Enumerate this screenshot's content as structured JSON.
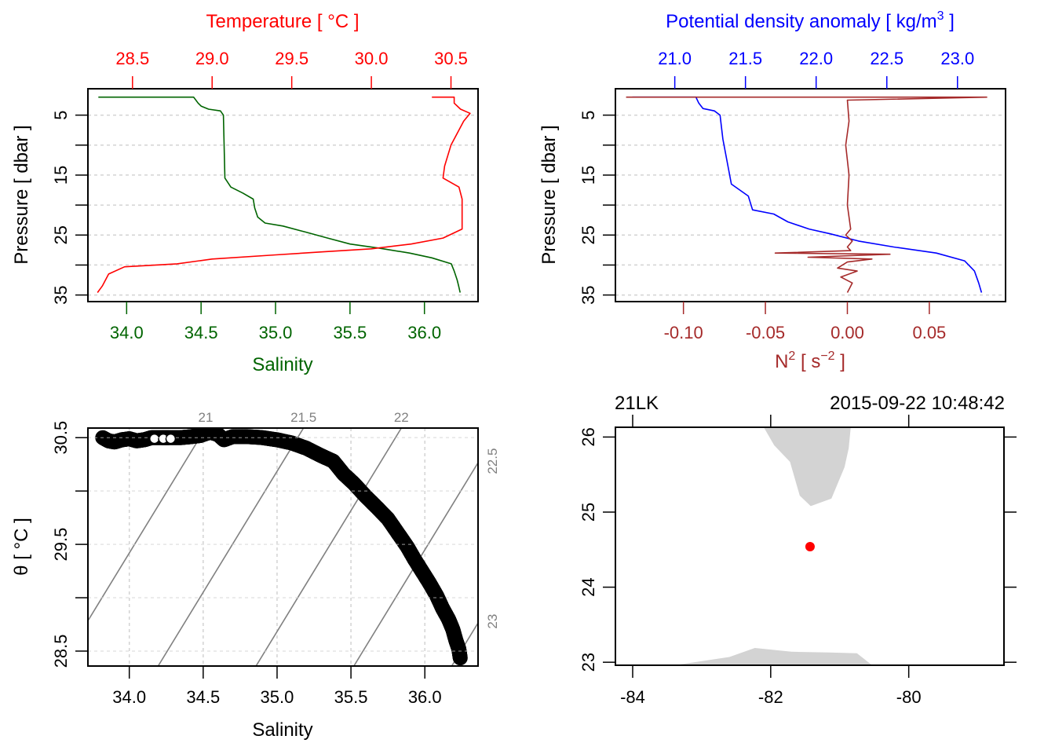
{
  "chart_data": [
    {
      "id": "profile_ts",
      "type": "line",
      "title": "",
      "top_axis": {
        "label": "Temperature [ °C ]",
        "color": "#ff0000",
        "ticks": [
          "28.5",
          "29.0",
          "29.5",
          "30.0",
          "30.5"
        ],
        "tick_values": [
          28.5,
          29.0,
          29.5,
          30.0,
          30.5
        ],
        "range": [
          28.22,
          30.67
        ]
      },
      "bottom_axis": {
        "label": "Salinity",
        "color": "#006400",
        "ticks": [
          "34.0",
          "34.5",
          "35.0",
          "35.5",
          "36.0"
        ],
        "tick_values": [
          34.0,
          34.5,
          35.0,
          35.5,
          36.0
        ],
        "range": [
          33.74,
          36.36
        ]
      },
      "left_axis": {
        "label": "Pressure [ dbar ]",
        "ticks": [
          "5",
          "15",
          "25",
          "35"
        ],
        "tick_values": [
          5,
          10,
          15,
          20,
          25,
          30,
          35
        ],
        "labeled_ticks": [
          5,
          15,
          25,
          35
        ],
        "range": [
          0.6,
          36.1
        ],
        "reversed": true
      },
      "grid": "horizontal-dashed",
      "series": [
        {
          "name": "Salinity",
          "color": "#006400",
          "axis": "bottom",
          "x": [
            33.81,
            34.45,
            34.48,
            34.5,
            34.55,
            34.63,
            34.65,
            34.66,
            34.7,
            34.78,
            34.85,
            34.86,
            34.88,
            34.93,
            35.05,
            35.2,
            35.35,
            35.5,
            35.7,
            35.9,
            36.05,
            36.18,
            36.2,
            36.22,
            36.23,
            36.24
          ],
          "y": [
            2.0,
            2.0,
            3.0,
            3.5,
            4.0,
            4.3,
            5.0,
            15.5,
            17.0,
            18.0,
            19.0,
            20.5,
            22.0,
            23.0,
            23.5,
            24.5,
            25.5,
            26.5,
            27.2,
            28.0,
            28.8,
            29.8,
            31.0,
            32.5,
            33.5,
            34.6
          ]
        },
        {
          "name": "Temperature",
          "color": "#ff0000",
          "axis": "top",
          "x": [
            30.38,
            30.52,
            30.52,
            30.56,
            30.62,
            30.58,
            30.5,
            30.46,
            30.45,
            30.55,
            30.57,
            30.57,
            30.45,
            30.25,
            30.0,
            29.7,
            29.4,
            29.0,
            28.78,
            28.45,
            28.35,
            28.31,
            28.28
          ],
          "y": [
            2.0,
            2.0,
            3.0,
            4.0,
            4.7,
            6.0,
            10.0,
            13.5,
            15.5,
            17.0,
            19.0,
            24.0,
            25.5,
            26.5,
            27.3,
            27.8,
            28.3,
            29.0,
            29.8,
            30.3,
            31.5,
            33.5,
            34.6
          ]
        }
      ]
    },
    {
      "id": "profile_density_n2",
      "type": "line",
      "top_axis": {
        "label": "Potential density anomaly [ kg/m",
        "label_sup": "3",
        "label_end": " ]",
        "color": "#0000ff",
        "ticks": [
          "21.0",
          "21.5",
          "22.0",
          "22.5",
          "23.0"
        ],
        "tick_values": [
          21.0,
          21.5,
          22.0,
          22.5,
          23.0
        ],
        "range": [
          20.58,
          23.34
        ]
      },
      "bottom_axis": {
        "label": "N",
        "label_sup": "2",
        "label_mid": " [ s",
        "label_sup2": "−2",
        "label_end": " ]",
        "color": "#a52a2a",
        "ticks": [
          "-0.10",
          "-0.05",
          "0.00",
          "0.05"
        ],
        "tick_values": [
          -0.1,
          -0.05,
          0.0,
          0.05
        ],
        "range": [
          -0.1415,
          0.0965
        ]
      },
      "left_axis": {
        "label": "Pressure [ dbar ]",
        "ticks": [
          "5",
          "15",
          "25",
          "35"
        ],
        "tick_values": [
          5,
          10,
          15,
          20,
          25,
          30,
          35
        ],
        "labeled_ticks": [
          5,
          15,
          25,
          35
        ],
        "range": [
          0.6,
          36.1
        ],
        "reversed": true
      },
      "grid": "horizontal-dashed",
      "series": [
        {
          "name": "Potential density anomaly",
          "color": "#0000ff",
          "axis": "top",
          "x": [
            20.7,
            21.15,
            21.17,
            21.2,
            21.28,
            21.32,
            21.34,
            21.4,
            21.52,
            21.55,
            21.7,
            21.8,
            21.95,
            22.1,
            22.3,
            22.55,
            22.85,
            23.05,
            23.12,
            23.15,
            23.17
          ],
          "y": [
            2.0,
            2.0,
            3.0,
            3.9,
            4.3,
            5.0,
            9.0,
            16.5,
            18.5,
            20.8,
            21.5,
            22.8,
            24.0,
            24.8,
            26.0,
            27.0,
            28.0,
            29.3,
            31.0,
            33.0,
            34.6
          ]
        },
        {
          "name": "N2",
          "color": "#a52a2a",
          "axis": "bottom",
          "x": [
            -0.135,
            0.085,
            0.0,
            0.001,
            -0.001,
            0.001,
            0.0,
            0.002,
            -0.001,
            0.003,
            0.0,
            0.002,
            -0.044,
            0.026,
            -0.024,
            0.015,
            0.0,
            -0.006,
            0.006,
            -0.004,
            0.003,
            0.0
          ],
          "y": [
            2.0,
            2.0,
            2.5,
            6.0,
            10.0,
            15.0,
            20.0,
            24.0,
            25.0,
            26.0,
            27.0,
            27.6,
            28.0,
            28.2,
            28.7,
            29.0,
            29.5,
            30.5,
            31.0,
            32.0,
            33.0,
            34.6
          ]
        }
      ]
    },
    {
      "id": "ts_diagram",
      "type": "scatter",
      "xlabel": "Salinity",
      "ylabel": "θ [ °C ]",
      "x_axis": {
        "ticks": [
          "34.0",
          "34.5",
          "35.0",
          "35.5",
          "36.0"
        ],
        "tick_values": [
          34.0,
          34.5,
          35.0,
          35.5,
          36.0
        ],
        "range": [
          33.72,
          36.36
        ]
      },
      "y_axis": {
        "ticks": [
          "30.5",
          "29.5",
          "28.5"
        ],
        "tick_values": [
          30.5,
          30.25,
          30.0,
          29.75,
          29.5,
          29.25,
          29.0,
          28.75,
          28.5
        ],
        "labeled_ticks": [
          30.5,
          29.5,
          28.5
        ],
        "range": [
          28.36,
          30.59
        ]
      },
      "isopycnals": {
        "color": "#808080",
        "labels": [
          "21",
          "21.5",
          "22",
          "22.5",
          "23"
        ],
        "values": [
          21.0,
          21.5,
          22.0,
          22.5,
          23.0
        ]
      },
      "grid": "dashed",
      "points_style": "open-circle",
      "points": {
        "S": [
          33.82,
          33.86,
          33.9,
          33.95,
          34.0,
          34.05,
          34.1,
          34.15,
          34.22,
          34.27,
          34.35,
          34.42,
          34.48,
          34.52,
          34.55,
          34.6,
          34.64,
          34.7,
          34.8,
          34.9,
          35.0,
          35.1,
          35.2,
          35.3,
          35.38,
          35.45,
          35.52,
          35.6,
          35.68,
          35.75,
          35.82,
          35.88,
          35.93,
          35.98,
          36.03,
          36.08,
          36.12,
          36.16,
          36.19,
          36.21,
          36.23,
          36.24
        ],
        "T": [
          30.5,
          30.47,
          30.46,
          30.48,
          30.49,
          30.47,
          30.48,
          30.5,
          30.5,
          30.5,
          30.5,
          30.51,
          30.52,
          30.54,
          30.55,
          30.53,
          30.48,
          30.51,
          30.51,
          30.5,
          30.48,
          30.45,
          30.4,
          30.33,
          30.28,
          30.16,
          30.07,
          29.95,
          29.84,
          29.74,
          29.6,
          29.48,
          29.36,
          29.25,
          29.14,
          29.02,
          28.9,
          28.8,
          28.7,
          28.6,
          28.52,
          28.43
        ]
      }
    },
    {
      "id": "station_map",
      "type": "scatter",
      "top_labels": {
        "station": "21LK",
        "datetime": "2015-09-22 10:48:42"
      },
      "x_axis": {
        "ticks": [
          "-84",
          "-82",
          "-80"
        ],
        "tick_values": [
          -84,
          -82,
          -80
        ],
        "range": [
          -84.25,
          -78.62
        ]
      },
      "y_axis": {
        "ticks": [
          "23",
          "24",
          "25",
          "26"
        ],
        "tick_values": [
          23,
          24,
          25,
          26
        ],
        "range": [
          22.96,
          26.13
        ]
      },
      "land_color": "#d3d3d3",
      "station": {
        "lon": -81.43,
        "lat": 24.54,
        "color": "#ff0000"
      },
      "land_polygons": [
        {
          "name": "florida",
          "lon": [
            -82.1,
            -81.95,
            -81.72,
            -81.58,
            -81.42,
            -81.12,
            -80.93,
            -80.87,
            -80.84,
            -80.1,
            -82.1
          ],
          "lat": [
            26.13,
            25.89,
            25.67,
            25.22,
            25.08,
            25.18,
            25.6,
            25.85,
            26.13,
            26.13,
            26.13
          ]
        },
        {
          "name": "cuba",
          "lon": [
            -83.4,
            -82.6,
            -82.23,
            -81.7,
            -81.15,
            -80.75,
            -80.53,
            -83.4
          ],
          "lat": [
            22.96,
            23.07,
            23.19,
            23.14,
            23.13,
            23.12,
            22.96,
            22.96
          ]
        }
      ]
    }
  ]
}
